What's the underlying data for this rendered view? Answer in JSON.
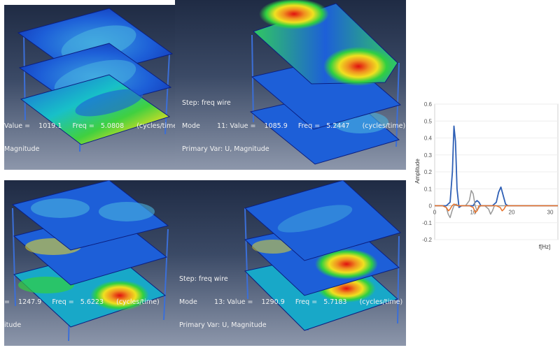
{
  "panels": [
    {
      "id": "mode-10",
      "caption_line2": "Value =    1019.1     Freq =   5.0808      (cycles/time)",
      "caption_line3": "Magnitude"
    },
    {
      "id": "mode-11",
      "caption_line1": "Step: freq wire",
      "caption_line2": "Mode        11: Value =    1085.9     Freq =   5.2447      (cycles/time)",
      "caption_line3": "Primary Var: U, Magnitude"
    },
    {
      "id": "mode-12",
      "caption_line2": "=    1247.9     Freq =   5.6223      (cycles/time)",
      "caption_line3": "itude"
    },
    {
      "id": "mode-13",
      "caption_line1": "Step: freq wire",
      "caption_line2": "Mode        13: Value =    1290.9     Freq =   5.7183      (cycles/time)",
      "caption_line3": "Primary Var: U, Magnitude"
    }
  ],
  "contour_colors": {
    "low": "#1040d8",
    "mid_low": "#18b8d0",
    "mid": "#30d040",
    "mid_high": "#f0e020",
    "high": "#e01010"
  },
  "chart_data": {
    "type": "line",
    "ylabel": "Amplitude",
    "xlabel": "f[Hz]",
    "xlim": [
      0,
      32
    ],
    "ylim": [
      -0.2,
      0.6
    ],
    "yticks": [
      -0.2,
      -0.1,
      0,
      0.1,
      0.2,
      0.3,
      0.4,
      0.5,
      0.6
    ],
    "ytick_labels": [
      "-0.2",
      "-0.1",
      "0",
      "0.1",
      "0.2",
      "0.3",
      "0.4",
      "0.5",
      "0.6"
    ],
    "xticks": [
      0,
      10,
      20,
      30
    ],
    "xtick_labels": [
      "0",
      "10",
      "20",
      "30"
    ],
    "series": [
      {
        "color": "#2e5fb5",
        "x": [
          0,
          2,
          3,
          4,
          4.6,
          5.0,
          5.4,
          5.8,
          6.3,
          7,
          8,
          9,
          10,
          10.5,
          11,
          11.5,
          12,
          13,
          14,
          15,
          16,
          16.6,
          17.2,
          17.8,
          18.4,
          19,
          20,
          22,
          24,
          26,
          28,
          30,
          32
        ],
        "y": [
          0,
          0,
          0,
          0.02,
          0.2,
          0.47,
          0.38,
          0.1,
          -0.01,
          0,
          0,
          0,
          0,
          0.02,
          0.03,
          0.02,
          0,
          0,
          0,
          0,
          0.02,
          0.08,
          0.11,
          0.06,
          0.01,
          0,
          0,
          0,
          0,
          0,
          0,
          0,
          0
        ]
      },
      {
        "color": "#999999",
        "x": [
          0,
          2,
          3,
          3.5,
          4,
          4.5,
          5,
          5.6,
          6,
          7,
          8,
          9,
          9.5,
          10,
          10.5,
          11,
          11.5,
          12,
          13,
          14,
          14.5,
          15,
          15.5,
          16,
          17,
          18,
          19,
          20,
          22,
          24,
          26,
          28,
          30,
          32
        ],
        "y": [
          0,
          0,
          -0.01,
          -0.05,
          -0.07,
          -0.03,
          0,
          0.01,
          0,
          0,
          0,
          0.03,
          0.09,
          0.07,
          0,
          -0.03,
          -0.01,
          0,
          0,
          -0.02,
          -0.05,
          -0.03,
          0,
          0,
          0,
          0,
          0,
          0,
          0,
          0,
          0,
          0,
          0,
          0
        ]
      },
      {
        "color": "#e8722a",
        "x": [
          0,
          2,
          3,
          3.6,
          4,
          4.5,
          5,
          6,
          7,
          8,
          9,
          10,
          10.5,
          11,
          11.5,
          12,
          13,
          14,
          15,
          16,
          17,
          17.5,
          18,
          18.5,
          19,
          20,
          22,
          24,
          26,
          28,
          30,
          32
        ],
        "y": [
          0,
          0,
          -0.01,
          -0.03,
          -0.02,
          0,
          0.01,
          0,
          0,
          0,
          0,
          -0.01,
          -0.04,
          -0.03,
          0,
          0,
          0,
          0,
          0,
          0,
          -0.01,
          -0.03,
          -0.02,
          0,
          0,
          0,
          0,
          0,
          0,
          0,
          0,
          0
        ]
      }
    ]
  }
}
